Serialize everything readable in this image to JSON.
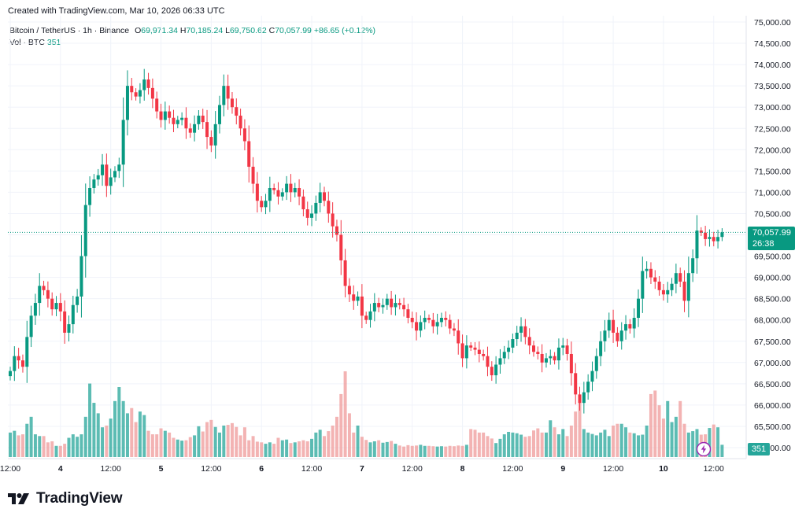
{
  "header": {
    "created_text": "Created with TradingView.com, Mar 10, 2026 06:33 UTC"
  },
  "legend": {
    "symbol": "Bitcoin / TetherUS · 1h · Binance",
    "o_label": "O",
    "o_value": "69,971.34",
    "h_label": "H",
    "h_value": "70,185.24",
    "l_label": "L",
    "l_value": "69,750.62",
    "c_label": "C",
    "c_value": "70,057.99",
    "change": "+86.65 (+0.12%)",
    "vol_label": "Vol · BTC",
    "vol_value": "351"
  },
  "badges": {
    "last_price": "70,057.99",
    "countdown": "26:38",
    "last_volume": "351"
  },
  "brand": {
    "name": "TradingView"
  },
  "icons": {
    "alert": "lightning-icon",
    "logo": "tradingview-logo-icon"
  },
  "colors": {
    "up": "#089981",
    "down": "#f23645",
    "vol_up": "#26a69a",
    "vol_down": "#ef9a9a",
    "grid": "#f0f3fa"
  },
  "chart_data": {
    "type": "candlestick",
    "title": "Bitcoin / TetherUS · 1h · Binance",
    "ylim": [
      65000,
      75000
    ],
    "y_ticks": [
      "65,000.00",
      "65,500.00",
      "66,000.00",
      "66,500.00",
      "67,000.00",
      "67,500.00",
      "68,000.00",
      "68,500.00",
      "69,000.00",
      "69,500.00",
      "70,000.00",
      "70,500.00",
      "71,000.00",
      "71,500.00",
      "72,000.00",
      "72,500.00",
      "73,000.00",
      "73,500.00",
      "74,000.00",
      "74,500.00",
      "75,000.00"
    ],
    "x_ticks": [
      {
        "label": "12:00",
        "index": 0
      },
      {
        "label": "4",
        "index": 12
      },
      {
        "label": "12:00",
        "index": 24
      },
      {
        "label": "5",
        "index": 36
      },
      {
        "label": "12:00",
        "index": 48
      },
      {
        "label": "6",
        "index": 60
      },
      {
        "label": "12:00",
        "index": 72
      },
      {
        "label": "7",
        "index": 84
      },
      {
        "label": "12:00",
        "index": 96
      },
      {
        "label": "8",
        "index": 108
      },
      {
        "label": "12:00",
        "index": 120
      },
      {
        "label": "9",
        "index": 132
      },
      {
        "label": "12:00",
        "index": 144
      },
      {
        "label": "10",
        "index": 156
      },
      {
        "label": "12:00",
        "index": 168
      }
    ],
    "close": [
      66800,
      67150,
      67050,
      66900,
      67600,
      68100,
      68400,
      68800,
      68700,
      68500,
      68250,
      68400,
      68200,
      67700,
      67900,
      68350,
      68550,
      69500,
      70700,
      71100,
      71300,
      71400,
      71650,
      71150,
      71350,
      71500,
      71650,
      72700,
      73500,
      73350,
      73250,
      73400,
      73650,
      73450,
      73200,
      72900,
      72700,
      72900,
      72750,
      72600,
      72700,
      72750,
      72500,
      72400,
      72600,
      72800,
      72650,
      72300,
      72100,
      72600,
      73050,
      73500,
      73200,
      73000,
      72800,
      72500,
      72200,
      71600,
      71200,
      70800,
      70650,
      70800,
      71100,
      71050,
      70900,
      71000,
      71200,
      71000,
      71100,
      70900,
      70600,
      70400,
      70500,
      70750,
      71000,
      70800,
      70500,
      70200,
      70000,
      69400,
      68800,
      68600,
      68450,
      68550,
      68100,
      68000,
      68200,
      68400,
      68300,
      68350,
      68500,
      68300,
      68400,
      68350,
      68250,
      68050,
      67950,
      67750,
      67950,
      68050,
      68000,
      67850,
      67950,
      68050,
      68000,
      67800,
      67750,
      67450,
      67100,
      67400,
      67350,
      67300,
      67200,
      67150,
      66900,
      66700,
      66950,
      67100,
      67250,
      67350,
      67550,
      67700,
      67850,
      67600,
      67400,
      67250,
      67200,
      67000,
      67100,
      67150,
      67050,
      67350,
      67400,
      67200,
      66750,
      66250,
      66050,
      66300,
      66550,
      66800,
      67150,
      67500,
      67750,
      68000,
      67700,
      67500,
      67750,
      67900,
      67800,
      68050,
      68500,
      69150,
      69200,
      69000,
      68900,
      68700,
      68600,
      68700,
      68850,
      69100,
      68900,
      68450,
      69100,
      69450,
      70100,
      70050,
      69900,
      69950,
      69850,
      69950,
      70058
    ],
    "volume_btc": [
      700,
      750,
      620,
      650,
      950,
      1150,
      650,
      600,
      600,
      420,
      450,
      320,
      320,
      380,
      550,
      650,
      580,
      650,
      1150,
      2100,
      1550,
      1250,
      850,
      900,
      1100,
      1600,
      2000,
      1600,
      1250,
      1400,
      1000,
      1300,
      1200,
      750,
      650,
      650,
      820,
      750,
      700,
      550,
      500,
      470,
      480,
      570,
      620,
      880,
      730,
      1000,
      1060,
      860,
      700,
      900,
      920,
      970,
      860,
      620,
      850,
      480,
      600,
      440,
      420,
      380,
      420,
      380,
      550,
      480,
      500,
      400,
      420,
      450,
      480,
      450,
      520,
      700,
      780,
      600,
      740,
      900,
      1150,
      1800,
      2450,
      1250,
      700,
      900,
      580,
      490,
      420,
      450,
      480,
      410,
      430,
      460,
      380,
      330,
      300,
      340,
      320,
      330,
      350,
      320,
      320,
      310,
      300,
      310,
      300,
      320,
      310,
      330,
      320,
      350,
      800,
      780,
      700,
      700,
      600,
      530,
      400,
      520,
      650,
      720,
      700,
      680,
      640,
      580,
      600,
      760,
      820,
      700,
      700,
      1050,
      850,
      650,
      800,
      600,
      900,
      1300,
      1600,
      800,
      700,
      660,
      620,
      700,
      780,
      600,
      900,
      950,
      950,
      850,
      700,
      680,
      620,
      640,
      900,
      1800,
      1900,
      1480,
      1100,
      1600,
      1000,
      1150,
      1600,
      950,
      700,
      740,
      800,
      640,
      650,
      830,
      930,
      850,
      351
    ]
  }
}
